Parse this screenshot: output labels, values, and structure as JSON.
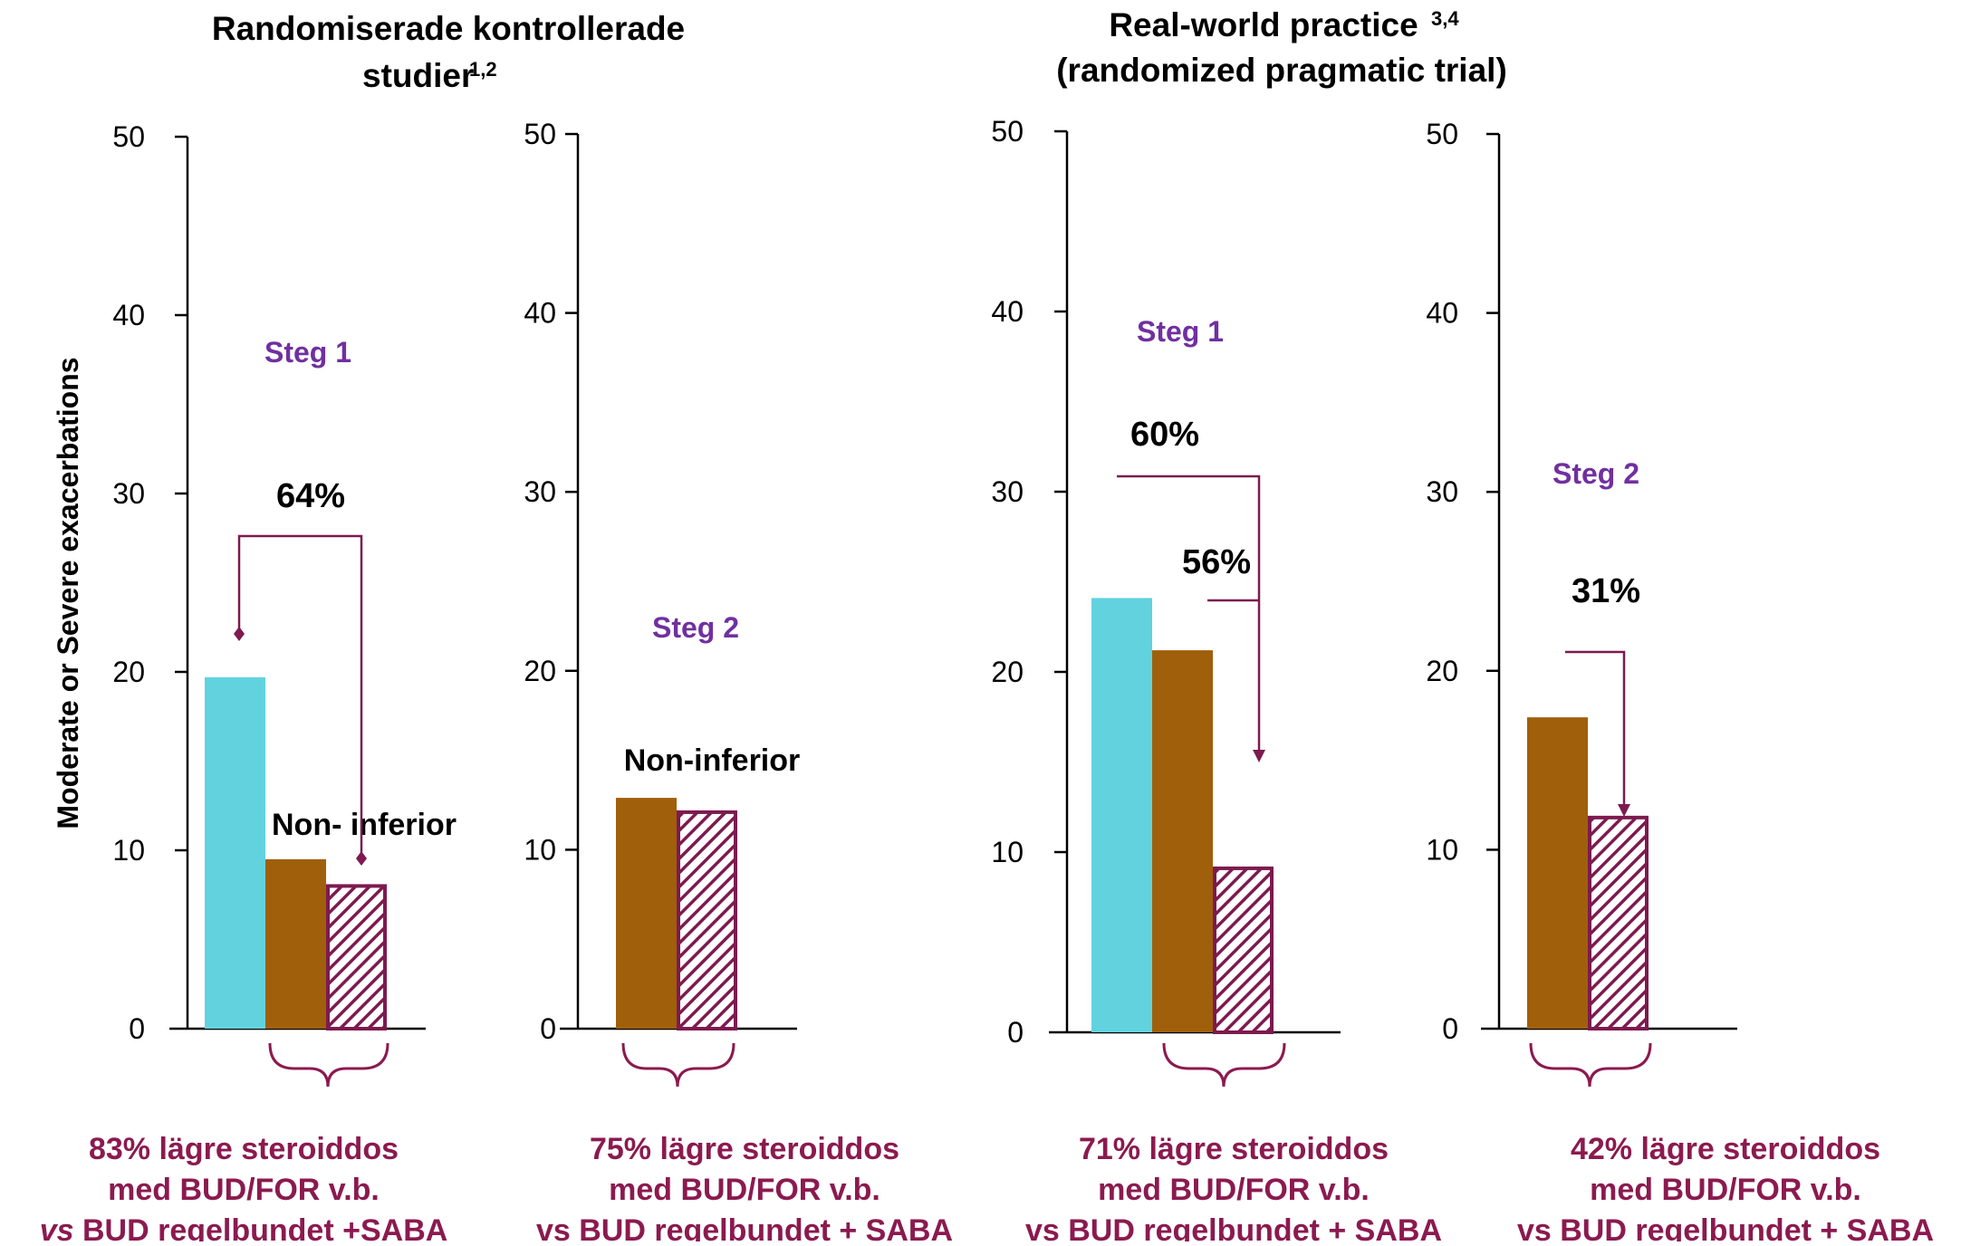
{
  "colors": {
    "saba": "#62d2df",
    "bud": "#a05f0a",
    "budfor": "#7d1a4f",
    "steg": "#7030a0",
    "footnote": "#8b1a4f",
    "text": "#000000"
  },
  "headings": {
    "left": {
      "line1": "Randomiserade kontrollerade",
      "line2": "studier",
      "sup": "1,2"
    },
    "right": {
      "line1": "Real-world practice",
      "line1_sup": "3,4",
      "line2": "(randomized pragmatic trial)"
    }
  },
  "y_axis_label": "Moderate or Severe exacerbations",
  "chart_data": [
    {
      "type": "bar",
      "step_label": "Steg 1",
      "ylim": [
        0,
        50
      ],
      "yticks": [
        "0",
        "10",
        "20",
        "30",
        "40",
        "50"
      ],
      "bars": [
        {
          "series": "saba",
          "value": 19.7
        },
        {
          "series": "bud",
          "value": 9.5
        },
        {
          "series": "budfor",
          "value": 8.1
        }
      ],
      "annotations": [
        {
          "kind": "percent",
          "text": "64%"
        },
        {
          "kind": "note",
          "text": "Non- inferior"
        }
      ],
      "footnote": [
        "83% lägre steroiddos",
        "med BUD/FOR v.b.",
        "vs BUD regelbundet +SABA"
      ],
      "footnote_vs_italic": true
    },
    {
      "type": "bar",
      "step_label": "Steg 2",
      "ylim": [
        0,
        50
      ],
      "yticks": [
        "0",
        "10",
        "20",
        "30",
        "40",
        "50"
      ],
      "bars": [
        {
          "series": "bud",
          "value": 12.9
        },
        {
          "series": "budfor",
          "value": 12.2
        }
      ],
      "annotations": [
        {
          "kind": "note",
          "text": "Non-inferior"
        }
      ],
      "footnote": [
        "75% lägre steroiddos",
        "med BUD/FOR v.b.",
        "vs BUD regelbundet + SABA"
      ],
      "footnote_vs_italic": false
    },
    {
      "type": "bar",
      "step_label": "Steg 1",
      "ylim": [
        0,
        50
      ],
      "yticks": [
        "0",
        "10",
        "20",
        "30",
        "40",
        "50"
      ],
      "bars": [
        {
          "series": "saba",
          "value": 24.1
        },
        {
          "series": "bud",
          "value": 21.2
        },
        {
          "series": "budfor",
          "value": 9.2
        }
      ],
      "annotations": [
        {
          "kind": "percent",
          "text": "60%"
        },
        {
          "kind": "percent",
          "text": "56%"
        }
      ],
      "footnote": [
        "71% lägre steroiddos",
        "med BUD/FOR v.b.",
        "vs BUD regelbundet + SABA"
      ],
      "footnote_vs_italic": false
    },
    {
      "type": "bar",
      "step_label": "Steg 2",
      "ylim": [
        0,
        50
      ],
      "yticks": [
        "0",
        "10",
        "20",
        "30",
        "40",
        "50"
      ],
      "bars": [
        {
          "series": "bud",
          "value": 17.4
        },
        {
          "series": "budfor",
          "value": 11.9
        }
      ],
      "annotations": [
        {
          "kind": "percent",
          "text": "31%"
        }
      ],
      "footnote": [
        "42% lägre steroiddos",
        "med BUD/FOR v.b.",
        "vs BUD regelbundet + SABA"
      ],
      "footnote_vs_italic": false
    }
  ]
}
